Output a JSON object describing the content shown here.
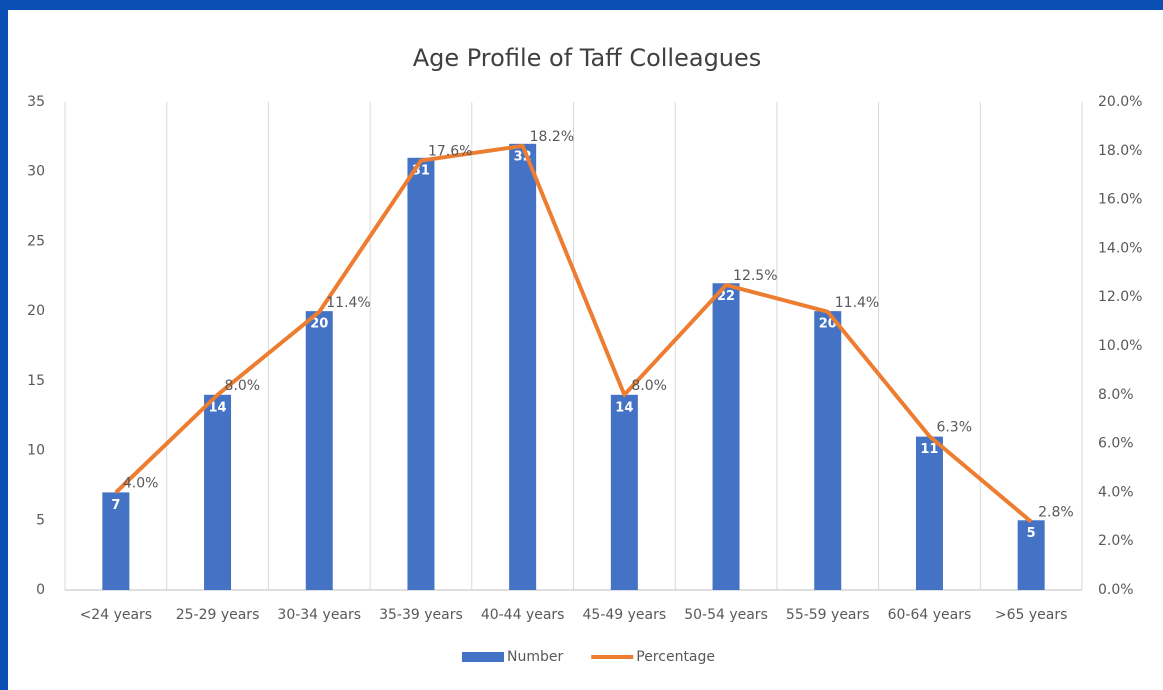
{
  "chart_data": {
    "type": "bar_line",
    "title": "Age Profile of Taff Colleagues",
    "categories": [
      "<24 years",
      "25-29 years",
      "30-34 years",
      "35-39 years",
      "40-44 years",
      "45-49 years",
      "50-54 years",
      "55-59 years",
      "60-64 years",
      ">65 years"
    ],
    "series": [
      {
        "name": "Number",
        "type": "bar",
        "color": "#4472c4",
        "values": [
          7,
          14,
          20,
          31,
          32,
          14,
          22,
          20,
          11,
          5
        ]
      },
      {
        "name": "Percentage",
        "type": "line",
        "axis": "y2",
        "color": "#ed7d31",
        "values": [
          4.0,
          8.0,
          11.4,
          17.6,
          18.2,
          8.0,
          12.5,
          11.4,
          6.3,
          2.8
        ],
        "value_labels": [
          "4.0%",
          "8.0%",
          "11.4%",
          "17.6%",
          "18.2%",
          "8.0%",
          "12.5%",
          "11.4%",
          "6.3%",
          "2.8%"
        ]
      }
    ],
    "ylim": [
      0,
      35
    ],
    "yticks": [
      0,
      5,
      10,
      15,
      20,
      25,
      30,
      35
    ],
    "y2lim": [
      0,
      20
    ],
    "y2ticks": [
      {
        "value": 0,
        "label": "0.0%"
      },
      {
        "value": 2,
        "label": "2.0%"
      },
      {
        "value": 4,
        "label": "4.0%"
      },
      {
        "value": 6,
        "label": "6.0%"
      },
      {
        "value": 8,
        "label": "8.0%"
      },
      {
        "value": 10,
        "label": "10.0%"
      },
      {
        "value": 12,
        "label": "12.0%"
      },
      {
        "value": 14,
        "label": "14.0%"
      },
      {
        "value": 16,
        "label": "16.0%"
      },
      {
        "value": 18,
        "label": "18.0%"
      },
      {
        "value": 20,
        "label": "20.0%"
      }
    ],
    "grid": true,
    "legend": "bottom"
  }
}
